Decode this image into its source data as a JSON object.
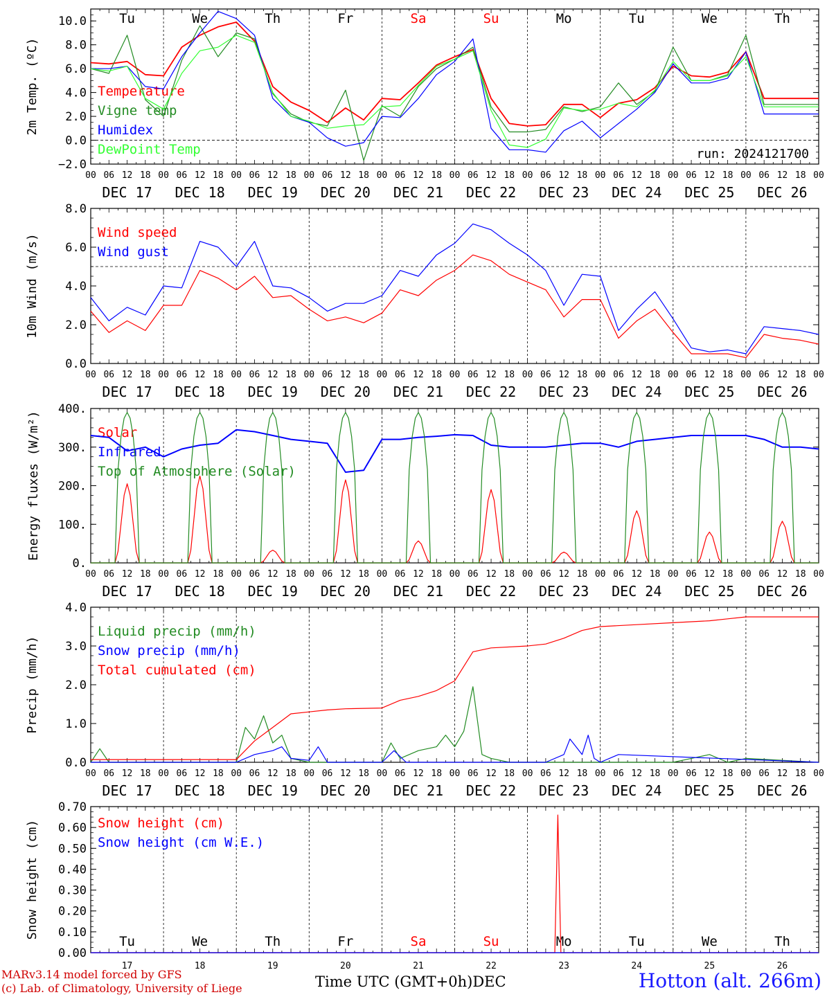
{
  "days": [
    "Tu",
    "We",
    "Th",
    "Fr",
    "Sa",
    "Su",
    "Mo",
    "Tu",
    "We",
    "Th"
  ],
  "weekend_indices": [
    4,
    5
  ],
  "date_labels": [
    "DEC 17",
    "DEC 18",
    "DEC 19",
    "DEC 20",
    "DEC 21",
    "DEC 22",
    "DEC 23",
    "DEC 24",
    "DEC 25",
    "DEC 26"
  ],
  "day_numbers": [
    "17",
    "18",
    "19",
    "20",
    "21",
    "22",
    "23",
    "24",
    "25",
    "26"
  ],
  "hour_ticks": [
    "00",
    "06",
    "12",
    "18"
  ],
  "final_hour": "00",
  "run_label": "run: 2024121700",
  "x_title": "Time UTC (GMT+0h)",
  "x_month": "DEC",
  "credit_line1": "MARv3.14 model forced by GFS",
  "credit_line2": "(c) Lab. of Climatology, University of Liege",
  "station": "Hotton (alt. 266m)",
  "colors": {
    "red": "#ff0000",
    "darkgreen": "#228b22",
    "blue": "#0000ff",
    "lightgreen": "#33ff33",
    "dash": "#000000"
  },
  "chart_data": [
    {
      "type": "line",
      "ylabel": "2m Temp. (ºC)",
      "ylim": [
        -2,
        11
      ],
      "yticks": [
        -2,
        0,
        2,
        4,
        6,
        8,
        10
      ],
      "ytick_labels": [
        "−2.0",
        "0.0",
        "2.0",
        "4.0",
        "6.0",
        "8.0",
        "10.0"
      ],
      "reference_line": 0,
      "x_hours": [
        0,
        6,
        12,
        18,
        24,
        30,
        36,
        42,
        48,
        54,
        60,
        66,
        72,
        78,
        84,
        90,
        96,
        102,
        108,
        114,
        120,
        126,
        132,
        138,
        144,
        150,
        156,
        162,
        168,
        174,
        180,
        186,
        192,
        198,
        204,
        210,
        216,
        222,
        228,
        234,
        240
      ],
      "series": [
        {
          "name": "Temperature",
          "color": "red",
          "values": [
            6.5,
            6.4,
            6.6,
            5.5,
            5.4,
            7.8,
            8.8,
            9.5,
            9.9,
            8.3,
            4.5,
            3.2,
            2.5,
            1.5,
            2.7,
            1.7,
            3.5,
            3.4,
            4.8,
            6.3,
            7.0,
            7.6,
            3.5,
            1.4,
            1.2,
            1.3,
            3.0,
            3.0,
            1.9,
            3.1,
            3.4,
            4.4,
            6.2,
            5.4,
            5.3,
            5.7,
            7.4,
            3.5,
            3.5,
            3.5,
            3.5
          ]
        },
        {
          "name": "Vigne temp",
          "color": "darkgreen",
          "values": [
            6.0,
            5.6,
            8.8,
            3.4,
            2.0,
            6.7,
            9.6,
            7.0,
            9.0,
            8.5,
            3.9,
            2.2,
            1.5,
            1.2,
            4.2,
            -1.7,
            2.9,
            2.0,
            4.5,
            6.0,
            6.8,
            7.8,
            2.8,
            0.7,
            0.7,
            0.9,
            2.8,
            2.4,
            2.8,
            4.8,
            3.0,
            4.1,
            7.8,
            5.0,
            5.0,
            5.5,
            8.8,
            3.0,
            3.0,
            3.0,
            3.0
          ]
        },
        {
          "name": "Humidex",
          "color": "blue",
          "values": [
            6.0,
            6.0,
            6.2,
            4.5,
            4.3,
            7.0,
            9.0,
            10.8,
            10.2,
            8.8,
            3.5,
            2.0,
            1.5,
            0.2,
            -0.5,
            -0.2,
            2.0,
            1.9,
            3.5,
            5.5,
            6.6,
            8.5,
            1.0,
            -0.8,
            -0.8,
            -1.0,
            0.8,
            1.6,
            0.2,
            1.4,
            2.6,
            4.0,
            6.4,
            4.8,
            4.8,
            5.2,
            7.4,
            2.2,
            2.2,
            2.2,
            2.2
          ]
        },
        {
          "name": "DewPoint Temp",
          "color": "lightgreen",
          "values": [
            6.0,
            5.8,
            6.2,
            3.5,
            2.6,
            5.6,
            7.5,
            7.8,
            8.8,
            8.2,
            4.0,
            2.0,
            1.6,
            1.0,
            1.2,
            1.3,
            2.8,
            2.9,
            4.6,
            6.2,
            6.8,
            7.5,
            2.5,
            -0.4,
            -0.6,
            0.1,
            2.7,
            2.5,
            2.6,
            3.1,
            2.8,
            4.2,
            6.6,
            5.0,
            5.0,
            5.4,
            7.0,
            2.8,
            2.8,
            2.8,
            2.8
          ]
        }
      ]
    },
    {
      "type": "line",
      "ylabel": "10m Wind (m/s)",
      "ylim": [
        0,
        8
      ],
      "yticks": [
        0,
        2,
        4,
        6,
        8
      ],
      "ytick_labels": [
        "0.0",
        "2.0",
        "4.0",
        "6.0",
        "8.0"
      ],
      "reference_line": 5,
      "x_hours": [
        0,
        6,
        12,
        18,
        24,
        30,
        36,
        42,
        48,
        54,
        60,
        66,
        72,
        78,
        84,
        90,
        96,
        102,
        108,
        114,
        120,
        126,
        132,
        138,
        144,
        150,
        156,
        162,
        168,
        174,
        180,
        186,
        192,
        198,
        204,
        210,
        216,
        222,
        228,
        234,
        240
      ],
      "series": [
        {
          "name": "Wind speed",
          "color": "red",
          "values": [
            2.7,
            1.6,
            2.2,
            1.7,
            3.0,
            3.0,
            4.8,
            4.4,
            3.8,
            4.5,
            3.4,
            3.5,
            2.8,
            2.2,
            2.4,
            2.1,
            2.6,
            3.8,
            3.5,
            4.3,
            4.8,
            5.6,
            5.3,
            4.6,
            4.2,
            3.8,
            2.4,
            3.3,
            3.3,
            1.3,
            2.2,
            2.8,
            1.6,
            0.5,
            0.5,
            0.5,
            0.3,
            1.5,
            1.3,
            1.2,
            1.0
          ]
        },
        {
          "name": "Wind gust",
          "color": "blue",
          "values": [
            3.4,
            2.2,
            2.9,
            2.5,
            4.0,
            3.9,
            6.3,
            6.0,
            5.0,
            6.3,
            4.0,
            3.9,
            3.4,
            2.7,
            3.1,
            3.1,
            3.5,
            4.8,
            4.5,
            5.6,
            6.2,
            7.2,
            6.9,
            6.2,
            5.6,
            4.8,
            3.0,
            4.6,
            4.5,
            1.7,
            2.8,
            3.7,
            2.3,
            0.8,
            0.6,
            0.7,
            0.5,
            1.9,
            1.8,
            1.7,
            1.5
          ]
        }
      ]
    },
    {
      "type": "line",
      "ylabel": "Energy fluxes (W/m²)",
      "ylim": [
        0,
        400
      ],
      "yticks": [
        0,
        100,
        200,
        300,
        400
      ],
      "ytick_labels": [
        "0.",
        "100.",
        "200.",
        "300.",
        "400."
      ],
      "reference_line": null,
      "daylight_start_hour": 8,
      "daylight_end_hour": 16,
      "series": [
        {
          "name": "Solar",
          "color": "red",
          "peaks": [
            205,
            225,
            33,
            215,
            57,
            190,
            28,
            135,
            80,
            108
          ]
        },
        {
          "name": "Infrared",
          "color": "blue",
          "x_hours": [
            0,
            6,
            12,
            18,
            24,
            30,
            36,
            42,
            48,
            54,
            60,
            66,
            72,
            78,
            84,
            90,
            96,
            102,
            108,
            114,
            120,
            126,
            132,
            138,
            144,
            150,
            156,
            162,
            168,
            174,
            180,
            186,
            192,
            198,
            204,
            210,
            216,
            222,
            228,
            234,
            240
          ],
          "values": [
            330,
            325,
            290,
            300,
            275,
            295,
            305,
            310,
            345,
            340,
            330,
            320,
            315,
            310,
            235,
            240,
            320,
            320,
            325,
            328,
            332,
            330,
            305,
            300,
            300,
            300,
            305,
            310,
            310,
            300,
            315,
            320,
            325,
            330,
            330,
            330,
            330,
            320,
            300,
            300,
            295
          ]
        },
        {
          "name": "Top of Atmosphere (Solar)",
          "color": "darkgreen",
          "peaks": [
            390,
            390,
            390,
            390,
            390,
            390,
            390,
            390,
            390,
            390
          ]
        }
      ]
    },
    {
      "type": "line",
      "ylabel": "Precip (mm/h)",
      "ylim": [
        0,
        4
      ],
      "yticks": [
        0,
        1,
        2,
        3,
        4
      ],
      "ytick_labels": [
        "0.0",
        "1.0",
        "2.0",
        "3.0",
        "4.0"
      ],
      "reference_line": null,
      "series": [
        {
          "name": "Liquid precip (mm/h)",
          "color": "darkgreen",
          "x_hours": [
            0,
            3,
            6,
            24,
            48,
            51,
            54,
            57,
            60,
            63,
            66,
            72,
            90,
            96,
            99,
            102,
            108,
            114,
            117,
            120,
            123,
            126,
            129,
            132,
            138,
            156,
            168,
            192,
            198,
            204,
            210,
            216,
            240
          ],
          "values": [
            0.0,
            0.35,
            0.0,
            0.0,
            0.0,
            0.9,
            0.6,
            1.2,
            0.5,
            0.7,
            0.1,
            0.0,
            0.0,
            0.0,
            0.5,
            0.1,
            0.3,
            0.4,
            0.7,
            0.4,
            0.8,
            1.95,
            0.2,
            0.1,
            0.0,
            0.0,
            0.0,
            0.0,
            0.1,
            0.2,
            0.0,
            0.1,
            0.0
          ]
        },
        {
          "name": "Snow precip (mm/h)",
          "color": "blue",
          "x_hours": [
            0,
            48,
            54,
            60,
            63,
            66,
            72,
            75,
            78,
            90,
            96,
            100,
            104,
            144,
            150,
            156,
            158,
            162,
            164,
            166,
            168,
            174,
            240
          ],
          "values": [
            0.0,
            0.0,
            0.2,
            0.3,
            0.4,
            0.1,
            0.05,
            0.4,
            0.0,
            0.0,
            0.0,
            0.3,
            0.0,
            0.0,
            0.0,
            0.2,
            0.6,
            0.2,
            0.7,
            0.1,
            0.0,
            0.2,
            0.0
          ]
        },
        {
          "name": "Total cumulated (cm)",
          "color": "red",
          "x_hours": [
            0,
            48,
            54,
            60,
            66,
            72,
            78,
            84,
            96,
            102,
            108,
            114,
            120,
            126,
            132,
            144,
            150,
            156,
            162,
            168,
            180,
            192,
            204,
            210,
            216,
            240
          ],
          "values": [
            0.07,
            0.07,
            0.55,
            0.9,
            1.25,
            1.3,
            1.35,
            1.38,
            1.4,
            1.6,
            1.7,
            1.85,
            2.1,
            2.85,
            2.95,
            3.0,
            3.05,
            3.2,
            3.4,
            3.5,
            3.55,
            3.6,
            3.65,
            3.7,
            3.75,
            3.75
          ]
        }
      ]
    },
    {
      "type": "line",
      "ylabel": "Snow height (cm)",
      "ylim": [
        0,
        0.7
      ],
      "yticks": [
        0,
        0.1,
        0.2,
        0.3,
        0.4,
        0.5,
        0.6,
        0.7
      ],
      "ytick_labels": [
        "0.00",
        "0.10",
        "0.20",
        "0.30",
        "0.40",
        "0.50",
        "0.60",
        "0.70"
      ],
      "reference_line": null,
      "series": [
        {
          "name": "Snow height (cm)",
          "color": "red",
          "x_hours": [
            0,
            153,
            154,
            155,
            240
          ],
          "values": [
            0,
            0,
            0.66,
            0,
            0
          ]
        },
        {
          "name": "Snow height (cm W.E.)",
          "color": "blue",
          "x_hours": [
            0,
            240
          ],
          "values": [
            0,
            0
          ]
        }
      ]
    }
  ]
}
